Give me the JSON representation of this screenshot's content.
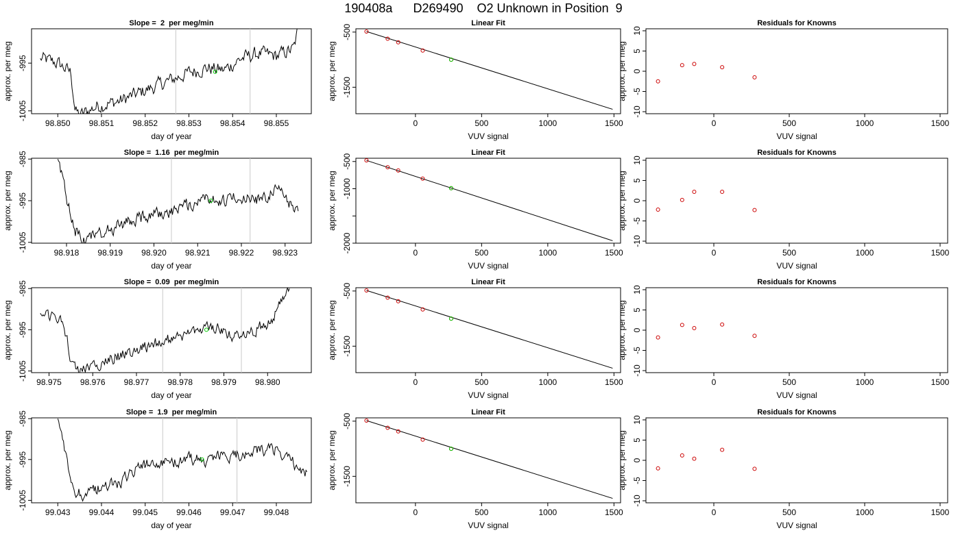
{
  "page_title": "190408a      D269490    O2 Unknown in Position  9",
  "colors": {
    "trace": "#000000",
    "known_point": "#cc0000",
    "unknown_point": "#00cc00",
    "marker_line": "#c8c8c8",
    "fit_line": "#000000"
  },
  "chart_data": [
    {
      "type": "line",
      "title": "Slope =  2  per meg/min",
      "xlabel": "day of year",
      "ylabel": "approx. per meg",
      "xlim": [
        98.8494,
        98.8558
      ],
      "ylim": [
        -1005.6,
        -987.8
      ],
      "xticks": [
        98.85,
        98.851,
        98.852,
        98.853,
        98.854,
        98.855
      ],
      "xtick_labels": [
        "98.850",
        "98.851",
        "98.852",
        "98.853",
        "98.854",
        "98.855"
      ],
      "yticks": [
        -1005,
        -995
      ],
      "ytick_labels": [
        "-1005",
        "-995"
      ],
      "vlines": [
        98.8527,
        98.8544
      ],
      "unknown_point": {
        "x": 98.8536,
        "y": -996.8
      },
      "series": [
        {
          "x": [
            98.8496,
            98.85,
            98.8503,
            98.8504,
            98.8505,
            98.8509,
            98.8514,
            98.8518,
            98.8522,
            98.8526,
            98.853,
            98.8534,
            98.8538,
            98.8542,
            98.8546,
            98.855,
            98.8554,
            98.8555
          ],
          "y": [
            -994,
            -995,
            -997,
            -1005,
            -1006,
            -1004,
            -1003,
            -1001.5,
            -1000,
            -998.5,
            -997,
            -996,
            -996.5,
            -994,
            -993,
            -993.5,
            -992,
            -987.8
          ]
        }
      ]
    },
    {
      "type": "scatter",
      "title": "Linear Fit",
      "xlabel": "VUV signal",
      "ylabel": "approx. per meg",
      "xlim": [
        -450,
        1550
      ],
      "ylim": [
        -1980,
        -440
      ],
      "xticks": [
        0,
        500,
        1000,
        1500
      ],
      "xtick_labels": [
        "0",
        "500",
        "1000",
        "1500"
      ],
      "yticks": [
        -500,
        -1500
      ],
      "ytick_labels": [
        "-500",
        "-1500"
      ],
      "fit_line": {
        "x": [
          -370,
          1490
        ],
        "y": [
          -490,
          -1900
        ]
      },
      "knowns": {
        "x": [
          -370,
          -210,
          -130,
          55,
          270
        ],
        "y": [
          -490,
          -620,
          -685,
          -835,
          -1000
        ]
      },
      "unknown": {
        "x": 270,
        "y": -1000
      }
    },
    {
      "type": "scatter",
      "title": "Residuals for Knowns",
      "xlabel": "VUV signal",
      "ylabel": "approx. per meg",
      "xlim": [
        -450,
        1550
      ],
      "ylim": [
        -10.5,
        10.5
      ],
      "xticks": [
        0,
        500,
        1000,
        1500
      ],
      "xtick_labels": [
        "0",
        "500",
        "1000",
        "1500"
      ],
      "yticks": [
        -10,
        -5,
        0,
        5,
        10
      ],
      "ytick_labels": [
        "-10",
        "-5",
        "0",
        "5",
        "10"
      ],
      "knowns": {
        "x": [
          -370,
          -210,
          -130,
          55,
          270
        ],
        "y": [
          -2.5,
          1.5,
          1.8,
          1.0,
          -1.5
        ]
      }
    },
    {
      "type": "line",
      "title": "Slope =  1.16  per meg/min",
      "xlabel": "day of year",
      "ylabel": "approx. per meg",
      "xlim": [
        98.9172,
        98.9236
      ],
      "ylim": [
        -1005.2,
        -984.8
      ],
      "xticks": [
        98.918,
        98.919,
        98.92,
        98.921,
        98.922,
        98.923
      ],
      "xtick_labels": [
        "98.918",
        "98.919",
        "98.920",
        "98.921",
        "98.922",
        "98.923"
      ],
      "yticks": [
        -1005,
        -995,
        -985
      ],
      "ytick_labels": [
        "-1005",
        "-995",
        "-985"
      ],
      "vlines": [
        98.9204,
        98.9222
      ],
      "unknown_point": {
        "x": 98.9213,
        "y": -995
      },
      "series": [
        {
          "x": [
            98.9178,
            98.918,
            98.9182,
            98.9184,
            98.9188,
            98.9192,
            98.9196,
            98.92,
            98.9204,
            98.9208,
            98.9212,
            98.9216,
            98.922,
            98.9224,
            98.9228,
            98.923,
            98.9232,
            98.9233
          ],
          "y": [
            -985,
            -994,
            -1002,
            -1004,
            -1003,
            -1001,
            -999.5,
            -998,
            -997.5,
            -996,
            -994,
            -995,
            -994,
            -995,
            -992.5,
            -994,
            -997,
            -997.5
          ]
        }
      ]
    },
    {
      "type": "scatter",
      "title": "Linear Fit",
      "xlabel": "VUV signal",
      "ylabel": "approx. per meg",
      "xlim": [
        -450,
        1550
      ],
      "ylim": [
        -2000,
        -440
      ],
      "xticks": [
        0,
        500,
        1000,
        1500
      ],
      "xtick_labels": [
        "0",
        "500",
        "1000",
        "1500"
      ],
      "yticks": [
        -500,
        -1000,
        -1500,
        -2000
      ],
      "ytick_labels": [
        "-500",
        "-1000",
        "",
        "-2000"
      ],
      "fit_line": {
        "x": [
          -370,
          1490
        ],
        "y": [
          -480,
          -1955
        ]
      },
      "knowns": {
        "x": [
          -370,
          -210,
          -130,
          55,
          270
        ],
        "y": [
          -480,
          -605,
          -665,
          -815,
          -990
        ]
      },
      "unknown": {
        "x": 270,
        "y": -990
      }
    },
    {
      "type": "scatter",
      "title": "Residuals for Knowns",
      "xlabel": "VUV signal",
      "ylabel": "approx. per meg",
      "xlim": [
        -450,
        1550
      ],
      "ylim": [
        -10.5,
        10.5
      ],
      "xticks": [
        0,
        500,
        1000,
        1500
      ],
      "xtick_labels": [
        "0",
        "500",
        "1000",
        "1500"
      ],
      "yticks": [
        -10,
        -5,
        0,
        5,
        10
      ],
      "ytick_labels": [
        "-10",
        "-5",
        "0",
        "5",
        "10"
      ],
      "knowns": {
        "x": [
          -370,
          -210,
          -130,
          55,
          270
        ],
        "y": [
          -2.2,
          0.2,
          2.2,
          2.2,
          -2.3
        ]
      }
    },
    {
      "type": "line",
      "title": "Slope =  0.09  per meg/min",
      "xlabel": "day of year",
      "ylabel": "approx. per meg",
      "xlim": [
        98.9746,
        98.981
      ],
      "ylim": [
        -1005.4,
        -984.8
      ],
      "xticks": [
        98.975,
        98.976,
        98.977,
        98.978,
        98.979,
        98.98
      ],
      "xtick_labels": [
        "98.975",
        "98.976",
        "98.977",
        "98.978",
        "98.979",
        "98.980"
      ],
      "yticks": [
        -1005,
        -995,
        -985
      ],
      "ytick_labels": [
        "-1005",
        "-995",
        "-985"
      ],
      "vlines": [
        98.9776,
        98.9794
      ],
      "unknown_point": {
        "x": 98.9786,
        "y": -995
      },
      "series": [
        {
          "x": [
            98.9748,
            98.9752,
            98.9754,
            98.9755,
            98.9757,
            98.976,
            98.9764,
            98.9768,
            98.9772,
            98.9776,
            98.978,
            98.9784,
            98.9788,
            98.9792,
            98.9796,
            98.98,
            98.9803,
            98.9805
          ],
          "y": [
            -991,
            -992,
            -996,
            -1002,
            -1005,
            -1003.5,
            -1002,
            -1000.5,
            -999,
            -998,
            -996.5,
            -995,
            -994.5,
            -996.5,
            -995.5,
            -993.5,
            -989,
            -985
          ]
        }
      ]
    },
    {
      "type": "scatter",
      "title": "Linear Fit",
      "xlabel": "VUV signal",
      "ylabel": "approx. per meg",
      "xlim": [
        -450,
        1550
      ],
      "ylim": [
        -1980,
        -440
      ],
      "xticks": [
        0,
        500,
        1000,
        1500
      ],
      "xtick_labels": [
        "0",
        "500",
        "1000",
        "1500"
      ],
      "yticks": [
        -500,
        -1500
      ],
      "ytick_labels": [
        "-500",
        "-1500"
      ],
      "fit_line": {
        "x": [
          -370,
          1490
        ],
        "y": [
          -490,
          -1900
        ]
      },
      "knowns": {
        "x": [
          -370,
          -210,
          -130,
          55,
          270
        ],
        "y": [
          -490,
          -620,
          -685,
          -835,
          -1000
        ]
      },
      "unknown": {
        "x": 270,
        "y": -1000
      }
    },
    {
      "type": "scatter",
      "title": "Residuals for Knowns",
      "xlabel": "VUV signal",
      "ylabel": "approx. per meg",
      "xlim": [
        -450,
        1550
      ],
      "ylim": [
        -10.5,
        10.5
      ],
      "xticks": [
        0,
        500,
        1000,
        1500
      ],
      "xtick_labels": [
        "0",
        "500",
        "1000",
        "1500"
      ],
      "yticks": [
        -10,
        -5,
        0,
        5,
        10
      ],
      "ytick_labels": [
        "-10",
        "-5",
        "0",
        "5",
        "10"
      ],
      "knowns": {
        "x": [
          -370,
          -210,
          -130,
          55,
          270
        ],
        "y": [
          -1.8,
          1.3,
          0.5,
          1.4,
          -1.4
        ]
      }
    },
    {
      "type": "line",
      "title": "Slope =  1.9  per meg/min",
      "xlabel": "day of year",
      "ylabel": "approx. per meg",
      "xlim": [
        99.0424,
        99.0488
      ],
      "ylim": [
        -1005.6,
        -984.8
      ],
      "xticks": [
        99.043,
        99.044,
        99.045,
        99.046,
        99.047,
        99.048
      ],
      "xtick_labels": [
        "99.043",
        "99.044",
        "99.045",
        "99.046",
        "99.047",
        "99.048"
      ],
      "yticks": [
        -1005,
        -995,
        -985
      ],
      "ytick_labels": [
        "-1005",
        "-995",
        "-985"
      ],
      "vlines": [
        99.0454,
        99.0471
      ],
      "unknown_point": {
        "x": 99.0463,
        "y": -995
      },
      "series": [
        {
          "x": [
            99.043,
            99.0432,
            99.0434,
            99.0436,
            99.044,
            99.0444,
            99.0448,
            99.0452,
            99.0456,
            99.046,
            99.0464,
            99.0468,
            99.0472,
            99.0476,
            99.048,
            99.0483,
            99.0485,
            99.0487
          ],
          "y": [
            -985,
            -995,
            -1002,
            -1004,
            -1001.5,
            -1001,
            -997,
            -996,
            -995.5,
            -995,
            -995,
            -994,
            -994,
            -993,
            -992.5,
            -995,
            -997,
            -998
          ]
        }
      ]
    },
    {
      "type": "scatter",
      "title": "Linear Fit",
      "xlabel": "VUV signal",
      "ylabel": "approx. per meg",
      "xlim": [
        -450,
        1550
      ],
      "ylim": [
        -1980,
        -440
      ],
      "xticks": [
        0,
        500,
        1000,
        1500
      ],
      "xtick_labels": [
        "0",
        "500",
        "1000",
        "1500"
      ],
      "yticks": [
        -500,
        -1500
      ],
      "ytick_labels": [
        "-500",
        "-1500"
      ],
      "fit_line": {
        "x": [
          -370,
          1490
        ],
        "y": [
          -490,
          -1900
        ]
      },
      "knowns": {
        "x": [
          -370,
          -210,
          -130,
          55,
          270
        ],
        "y": [
          -490,
          -620,
          -685,
          -835,
          -1000
        ]
      },
      "unknown": {
        "x": 270,
        "y": -1000
      }
    },
    {
      "type": "scatter",
      "title": "Residuals for Knowns",
      "xlabel": "VUV signal",
      "ylabel": "approx. per meg",
      "xlim": [
        -450,
        1550
      ],
      "ylim": [
        -10.5,
        10.5
      ],
      "xticks": [
        0,
        500,
        1000,
        1500
      ],
      "xtick_labels": [
        "0",
        "500",
        "1000",
        "1500"
      ],
      "yticks": [
        -10,
        -5,
        0,
        5,
        10
      ],
      "ytick_labels": [
        "-10",
        "-5",
        "0",
        "5",
        "10"
      ],
      "knowns": {
        "x": [
          -370,
          -210,
          -130,
          55,
          270
        ],
        "y": [
          -2.0,
          1.2,
          0.4,
          2.6,
          -2.1
        ]
      }
    }
  ]
}
